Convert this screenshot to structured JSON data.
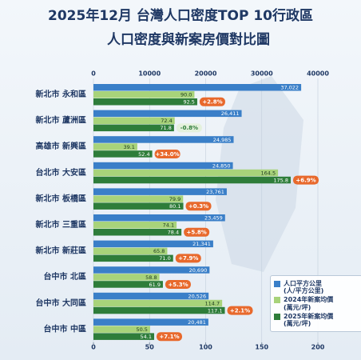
{
  "chart_data": {
    "type": "grouped-hbar",
    "title": "2025年12月 台灣人口密度TOP 10行政區",
    "subtitle": "人口密度與新案房價對比圖",
    "categories": [
      "新北市 永和區",
      "新北市 蘆洲區",
      "高雄市 新興區",
      "台北市 大安區",
      "新北市 板橋區",
      "新北市 三重區",
      "新北市 新莊區",
      "台中市 北區",
      "台中市 大同區",
      "台中市 中區"
    ],
    "series": [
      {
        "name": "人口平方公里\n(人/平方公里)",
        "color": "#3a7fc8",
        "axis": "x2",
        "values": [
          37022,
          26411,
          24985,
          24850,
          23761,
          23459,
          21341,
          20690,
          20526,
          20481
        ],
        "value_labels": [
          "37,022",
          "26,411",
          "24,985",
          "24,850",
          "23,761",
          "23,459",
          "21,341",
          "20,690",
          "20,526",
          "20,481"
        ]
      },
      {
        "name": "2024年新案均價\n(萬元/坪)",
        "color": "#a8d37a",
        "values": [
          90.0,
          72.4,
          39.1,
          164.5,
          79.9,
          74.1,
          65.8,
          58.8,
          114.7,
          50.5
        ],
        "value_labels": [
          "90.0",
          "72.4",
          "39.1",
          "164.5",
          "79.9",
          "74.1",
          "65.8",
          "58.8",
          "114.7",
          "50.5"
        ]
      },
      {
        "name": "2025年新案均價\n(萬元/坪)",
        "color": "#2e7d3a",
        "values": [
          92.5,
          71.8,
          52.4,
          175.8,
          80.1,
          78.4,
          71.0,
          61.9,
          117.1,
          54.1
        ],
        "value_labels": [
          "92.5",
          "71.8",
          "52.4",
          "175.8",
          "80.1",
          "78.4",
          "71.0",
          "61.9",
          "117.1",
          "54.1"
        ]
      }
    ],
    "change_labels": [
      "+2.8%",
      "-0.8%",
      "+34.0%",
      "+6.9%",
      "+0.3%",
      "+5.8%",
      "+7.9%",
      "+5.3%",
      "+2.1%",
      "+7.1%"
    ],
    "xlim": [
      0,
      200
    ],
    "xticks": [
      0,
      50,
      100,
      150,
      200
    ],
    "x2lim": [
      0,
      40000
    ],
    "x2ticks": [
      0,
      10000,
      20000,
      30000,
      40000
    ],
    "grid": true
  }
}
